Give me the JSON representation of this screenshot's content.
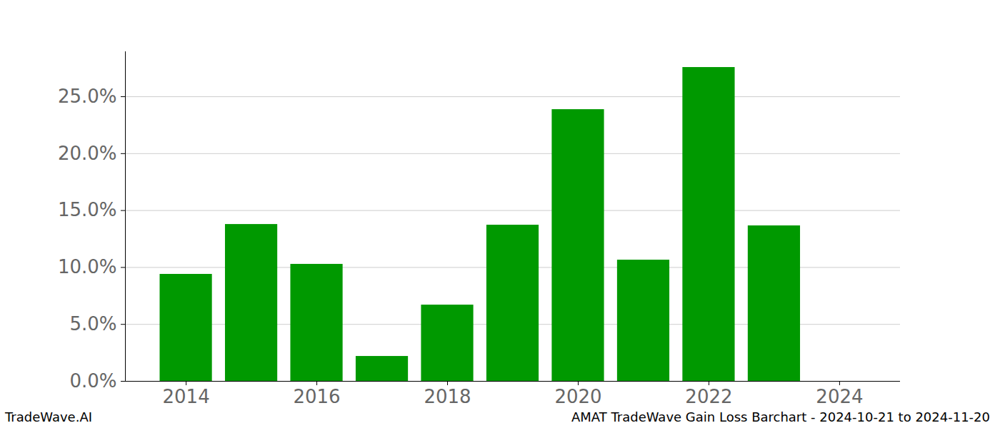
{
  "chart_data": {
    "type": "bar",
    "title": "AMAT TradeWave Gain Loss Barchart - 2024-10-21 to 2024-11-20",
    "caption": "TradeWave.AI",
    "x": [
      2014,
      2015,
      2016,
      2017,
      2018,
      2019,
      2020,
      2021,
      2022,
      2023
    ],
    "values": [
      9.4,
      13.78,
      10.28,
      2.19,
      6.7,
      13.72,
      23.87,
      10.65,
      27.57,
      13.66
    ],
    "color": "#009900",
    "xlim": [
      2013.07,
      2024.93
    ],
    "xticks": [
      2014,
      2016,
      2018,
      2020,
      2022,
      2024
    ],
    "ylim": [
      0,
      28.95
    ],
    "yticks": [
      {
        "value": 0,
        "label": "0.0%"
      },
      {
        "value": 5,
        "label": "5.0%"
      },
      {
        "value": 10,
        "label": "10.0%"
      },
      {
        "value": 15,
        "label": "15.0%"
      },
      {
        "value": 20,
        "label": "20.0%"
      },
      {
        "value": 25,
        "label": "25.0%"
      }
    ],
    "grid": true
  }
}
